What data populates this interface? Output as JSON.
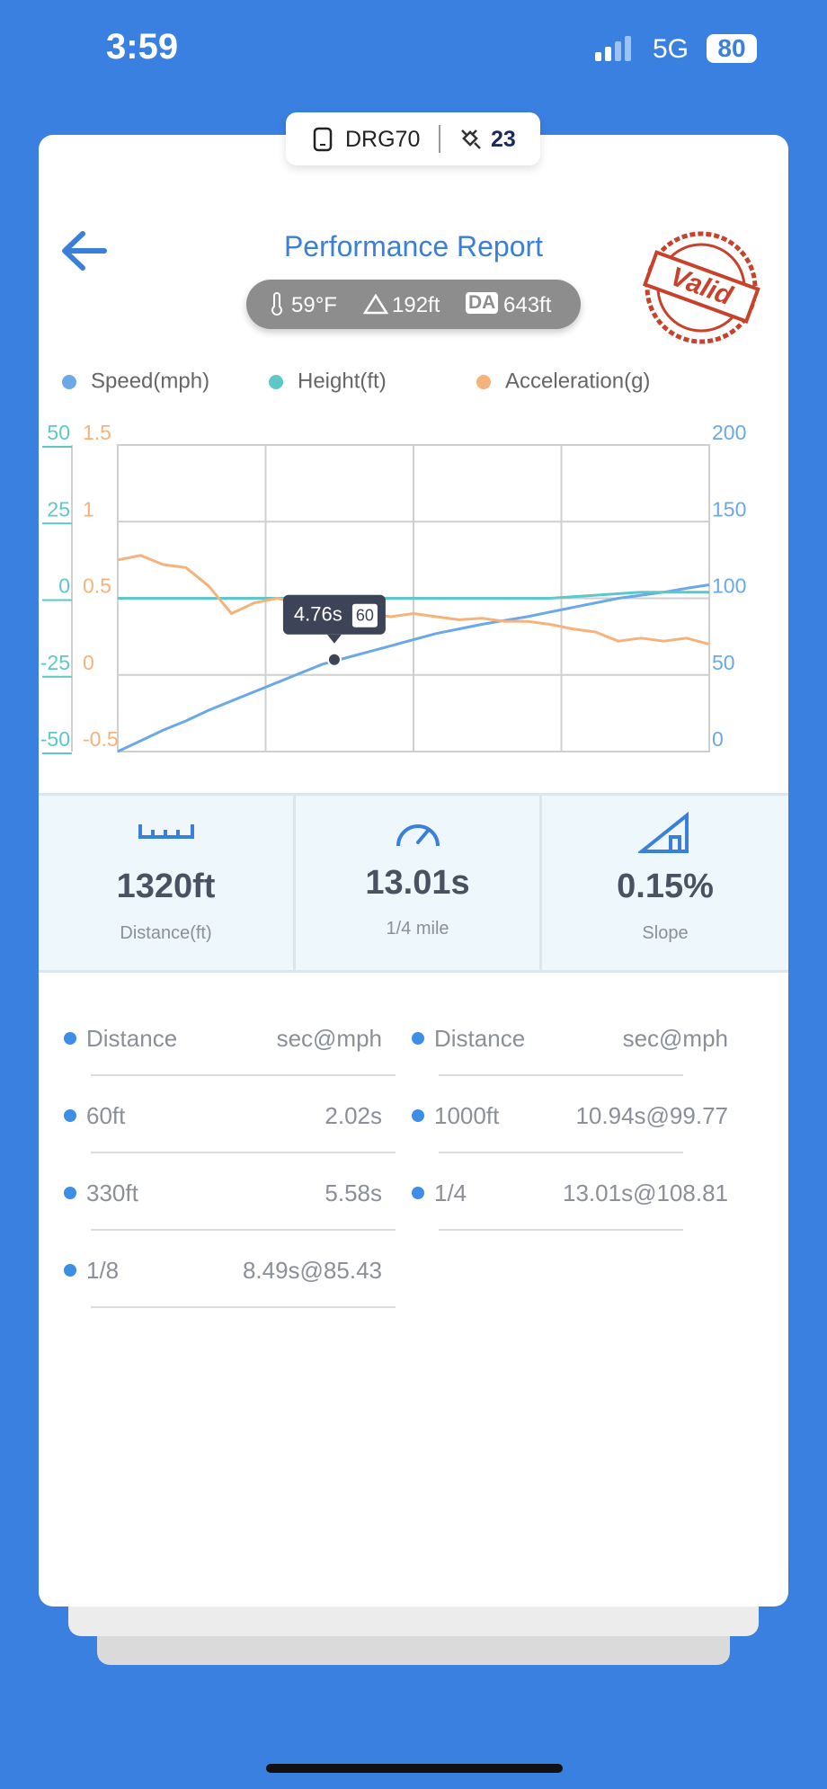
{
  "status_bar": {
    "time": "3:59",
    "network": "5G",
    "battery": "80"
  },
  "device": {
    "name": "DRG70",
    "satellites": "23"
  },
  "header": {
    "title": "Performance Report",
    "stamp": "Valid"
  },
  "conditions": {
    "temperature": "59°F",
    "altitude": "192ft",
    "da_badge": "DA",
    "density_altitude": "643ft"
  },
  "chart_data": {
    "type": "line",
    "x": [
      0,
      0.5,
      1,
      1.5,
      2,
      2.5,
      3,
      3.5,
      4,
      4.5,
      5,
      5.5,
      6,
      6.5,
      7,
      7.5,
      8,
      8.5,
      9,
      9.5,
      10,
      10.5,
      11,
      11.5,
      12,
      12.5,
      13
    ],
    "xlim": [
      0,
      13
    ],
    "series": [
      {
        "name": "Speed(mph)",
        "color": "#6aa8e8",
        "axis": "y2",
        "values": [
          0,
          7,
          14,
          20,
          27,
          33,
          39,
          45,
          51,
          57,
          61,
          65,
          69,
          73,
          77,
          80,
          83,
          85.5,
          88,
          91,
          94,
          97,
          100,
          102,
          104,
          106.5,
          108.8
        ]
      },
      {
        "name": "Height(ft)",
        "color": "#5cc8c8",
        "axis": "y",
        "values": [
          0,
          0,
          0,
          0,
          0,
          0,
          0,
          0,
          0,
          0,
          0,
          0,
          0,
          0,
          0,
          0,
          0,
          0,
          0,
          0,
          0.5,
          1,
          1.5,
          2,
          2,
          2,
          2
        ]
      },
      {
        "name": "Acceleration(g)",
        "color": "#f5b27a",
        "axis": "y3",
        "values": [
          0.75,
          0.78,
          0.72,
          0.7,
          0.58,
          0.4,
          0.47,
          0.5,
          0.47,
          0.45,
          0.43,
          0.4,
          0.38,
          0.4,
          0.38,
          0.36,
          0.37,
          0.35,
          0.35,
          0.33,
          0.3,
          0.28,
          0.22,
          0.24,
          0.22,
          0.24,
          0.2
        ]
      }
    ],
    "ylim": [
      -50,
      50
    ],
    "yticks": [
      -50,
      -25,
      0,
      25,
      50
    ],
    "y2lim": [
      0,
      200
    ],
    "y2ticks": [
      0,
      50,
      100,
      150,
      200
    ],
    "y3lim": [
      -0.5,
      1.5
    ],
    "y3ticks": [
      -0.5,
      0,
      0.5,
      1,
      1.5
    ],
    "grid": true,
    "tooltip": {
      "x": 4.76,
      "x_label": "4.76s",
      "y": 60
    }
  },
  "stats": [
    {
      "value": "1320ft",
      "label": "Distance(ft)"
    },
    {
      "value": "13.01s",
      "label": "1/4 mile"
    },
    {
      "value": "0.15%",
      "label": "Slope"
    }
  ],
  "splits": {
    "columns": [
      {
        "header": [
          "Distance",
          "sec@mph"
        ],
        "rows": [
          [
            "60ft",
            "2.02s"
          ],
          [
            "330ft",
            "5.58s"
          ],
          [
            "1/8",
            "8.49s@85.43"
          ]
        ]
      },
      {
        "header": [
          "Distance",
          "sec@mph"
        ],
        "rows": [
          [
            "1000ft",
            "10.94s@99.77"
          ],
          [
            "1/4",
            "13.01s@108.81"
          ]
        ]
      }
    ]
  }
}
